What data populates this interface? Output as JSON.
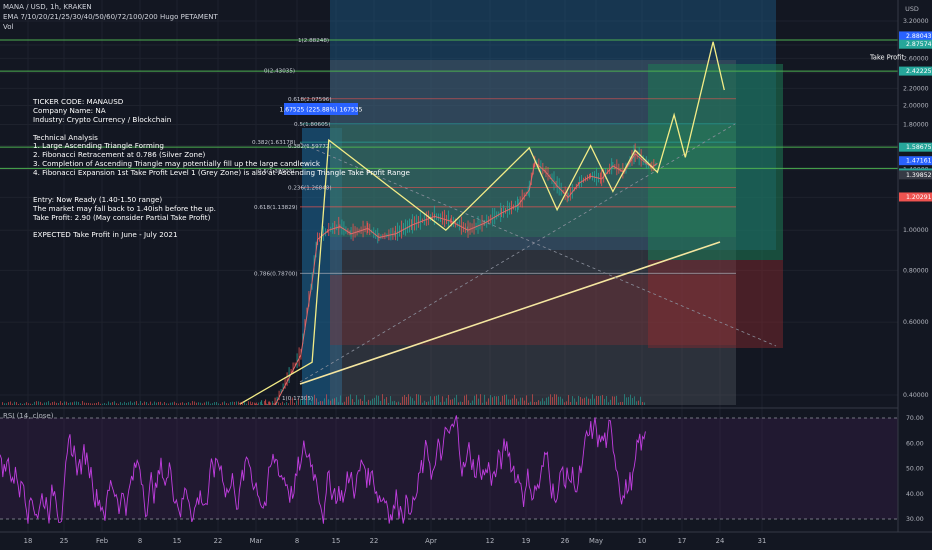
{
  "header": {
    "symbol_line": "MANA / USD, 1h, KRAKEN",
    "ema_line": "EMA 7/10/20/21/25/30/40/50/60/72/100/200 Hugo PETAMENT",
    "vol_label": "Vol",
    "currency": "USD"
  },
  "notes": [
    "TICKER CODE: MANAUSD",
    "Company Name: NA",
    "Industry: Crypto Currency / Blockchain",
    "",
    "Technical Analysis",
    "1. Large Ascending Triangle Forming",
    "2. Fibonacci Retracement at 0.786 (Silver Zone)",
    "3. Completion of Ascending Triangle may potentially fill up the large candlewick",
    "4. Fibonacci Expansion 1st Take Profit Level 1 (Grey Zone) is also at Ascending Triangle Take Profit Range",
    "",
    "",
    "Entry: Now Ready (1.40-1.50 range)",
    "The market may fall back to 1.40ish before the up.",
    "Take Profit: 2.90 (May consider Partial Take Profit)",
    "",
    "EXPECTED Take Profit in June - July 2021"
  ],
  "rsi_title": "RSI (14, close)",
  "take_profit_label": "Take Profit",
  "measure_label": "1.67525 (225.88%) 167535",
  "chart_data": {
    "type": "line",
    "title": "MANA / USD, 1h, KRAKEN",
    "price_axis": {
      "scale": "log",
      "ticks": [
        "3.20000",
        "2.80000",
        "2.60000",
        "2.40000",
        "2.20000",
        "2.00000",
        "1.80000",
        "1.60000",
        "1.40000",
        "1.20000",
        "1.00000",
        "0.80000",
        "0.60000",
        "0.40000"
      ]
    },
    "price_markers": [
      {
        "label": "2.88043",
        "value": 2.88043,
        "color": "#2962ff"
      },
      {
        "label": "2.87574",
        "value": 2.87574,
        "color": "#26a69a"
      },
      {
        "label": "2.42225",
        "value": 2.42225,
        "color": "#26a69a"
      },
      {
        "label": "1.58675",
        "value": 1.58675,
        "color": "#26a69a"
      },
      {
        "label": "1.47161",
        "value": 1.47161,
        "color": "#2962ff"
      },
      {
        "label": "1.40979",
        "value": 1.40979,
        "color": "#26a69a"
      },
      {
        "label": "1.39852",
        "value": 1.39852,
        "color": "#363a45"
      },
      {
        "label": "1.20291",
        "value": 1.20291,
        "color": "#ef5350"
      }
    ],
    "time_axis": [
      "18",
      "25",
      "Feb",
      "8",
      "15",
      "22",
      "Mar",
      "8",
      "15",
      "22",
      "Apr",
      "12",
      "19",
      "26",
      "May",
      "10",
      "17",
      "24",
      "31"
    ],
    "fib_retracement": [
      {
        "label": "1(2.88248)",
        "value": 2.88248
      },
      {
        "label": "0(2.43035)",
        "value": 2.43035
      },
      {
        "label": "0.618(2.07596)",
        "value": 2.07596
      },
      {
        "label": "0.5(1.80605)",
        "value": 1.80605
      },
      {
        "label": "0.382(1.63178)",
        "value": 1.63178
      },
      {
        "label": "0.382(1.59772)",
        "value": 1.59772
      },
      {
        "label": "0.5(1.38903)",
        "value": 1.38903
      },
      {
        "label": "0.236(1.26848)",
        "value": 1.26848
      },
      {
        "label": "0.618(1.13829)",
        "value": 1.13829
      },
      {
        "label": "0.786(0.78700)",
        "value": 0.787
      },
      {
        "label": "1(0.17305)",
        "value": 0.17305
      }
    ],
    "price_series": [
      {
        "t": "Feb 25",
        "v": 0.36
      },
      {
        "t": "Mar 3",
        "v": 0.37
      },
      {
        "t": "Mar 8",
        "v": 0.5
      },
      {
        "t": "Mar 10",
        "v": 0.75
      },
      {
        "t": "Mar 11",
        "v": 0.95
      },
      {
        "t": "Mar 13",
        "v": 1.0
      },
      {
        "t": "Mar 15",
        "v": 1.02
      },
      {
        "t": "Mar 17",
        "v": 0.98
      },
      {
        "t": "Mar 20",
        "v": 1.01
      },
      {
        "t": "Mar 22",
        "v": 0.96
      },
      {
        "t": "Mar 25",
        "v": 0.98
      },
      {
        "t": "Mar 28",
        "v": 1.03
      },
      {
        "t": "Apr 1",
        "v": 1.08
      },
      {
        "t": "Apr 4",
        "v": 1.05
      },
      {
        "t": "Apr 7",
        "v": 1.0
      },
      {
        "t": "Apr 10",
        "v": 1.04
      },
      {
        "t": "Apr 13",
        "v": 1.1
      },
      {
        "t": "Apr 16",
        "v": 1.15
      },
      {
        "t": "Apr 18",
        "v": 1.25
      },
      {
        "t": "Apr 19",
        "v": 1.46
      },
      {
        "t": "Apr 21",
        "v": 1.38
      },
      {
        "t": "Apr 23",
        "v": 1.28
      },
      {
        "t": "Apr 25",
        "v": 1.2
      },
      {
        "t": "Apr 27",
        "v": 1.3
      },
      {
        "t": "Apr 29",
        "v": 1.35
      },
      {
        "t": "May 1",
        "v": 1.33
      },
      {
        "t": "May 3",
        "v": 1.43
      },
      {
        "t": "May 5",
        "v": 1.38
      },
      {
        "t": "May 7",
        "v": 1.53
      },
      {
        "t": "May 9",
        "v": 1.45
      },
      {
        "t": "May 10",
        "v": 1.42
      },
      {
        "t": "May 11",
        "v": 1.45
      }
    ],
    "projection": [
      {
        "t": "Feb 25",
        "v": 0.38
      },
      {
        "t": "Mar 10",
        "v": 0.48
      },
      {
        "t": "Mar 13",
        "v": 1.65
      },
      {
        "t": "Apr 3",
        "v": 1.0
      },
      {
        "t": "Apr 18",
        "v": 1.58
      },
      {
        "t": "Apr 23",
        "v": 1.12
      },
      {
        "t": "Apr 29",
        "v": 1.6
      },
      {
        "t": "May 3",
        "v": 1.24
      },
      {
        "t": "May 7",
        "v": 1.56
      },
      {
        "t": "May 11",
        "v": 1.38
      },
      {
        "t": "May 14",
        "v": 1.9
      },
      {
        "t": "May 16",
        "v": 1.5
      },
      {
        "t": "May 21",
        "v": 2.85
      },
      {
        "t": "May 23",
        "v": 2.18
      }
    ],
    "rsi": {
      "ticks": [
        "70.00",
        "60.00",
        "50.00",
        "40.00",
        "30.00"
      ],
      "upper": 70,
      "lower": 30
    }
  }
}
